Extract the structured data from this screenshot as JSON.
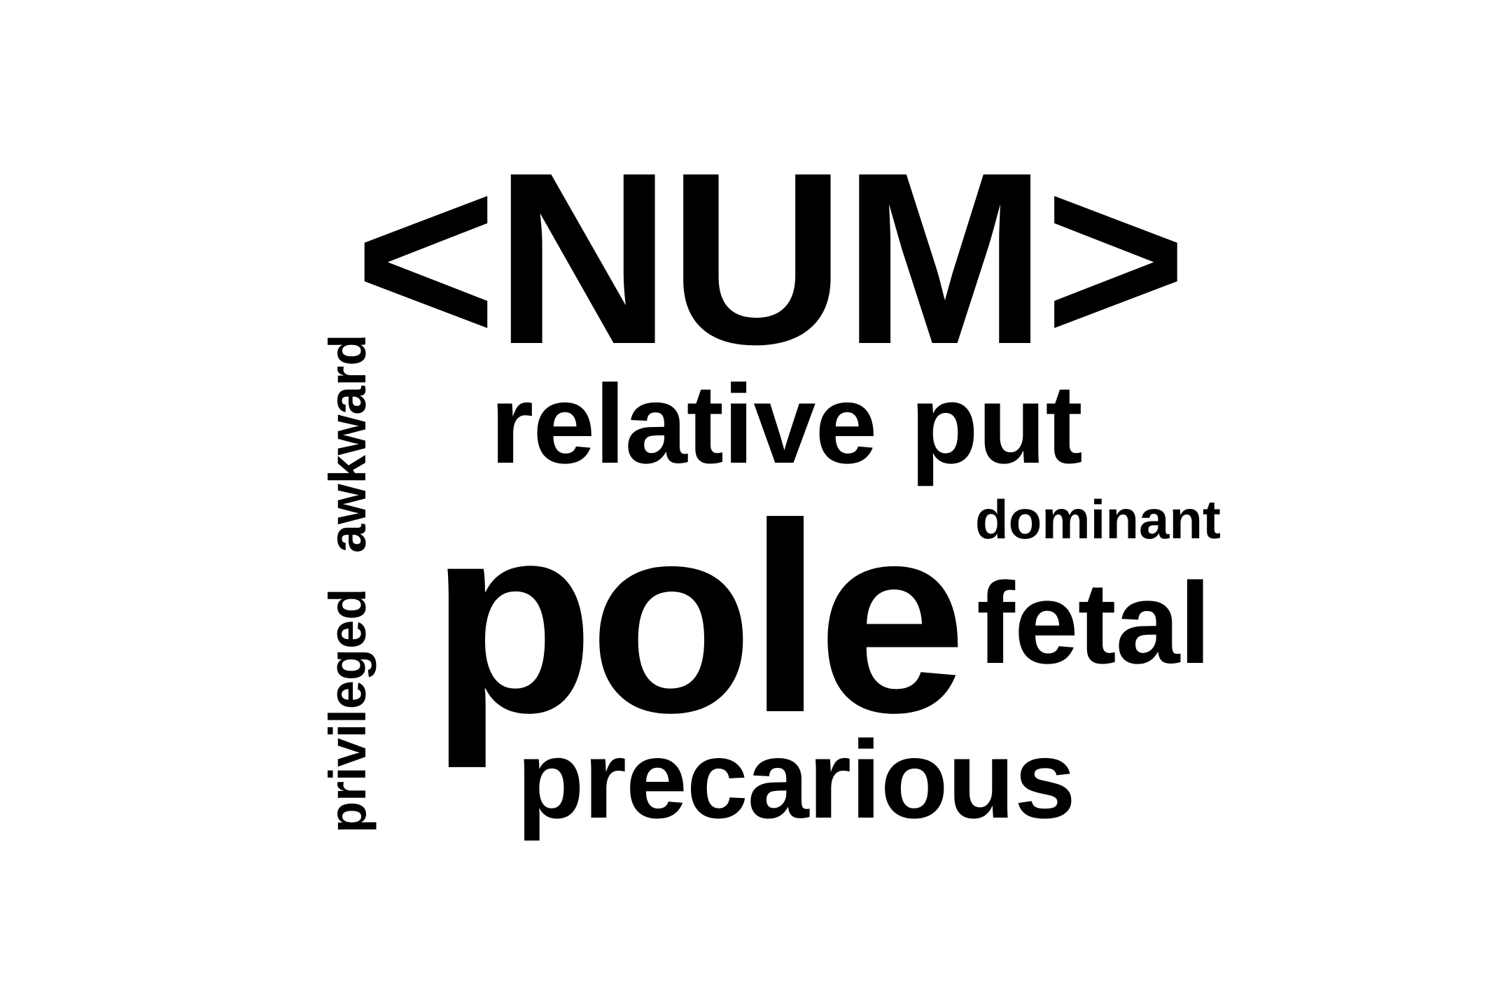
{
  "words": {
    "num": "<NUM>",
    "relative": "relative",
    "put": "put",
    "dominant": "dominant",
    "pole": "pole",
    "fetal": "fetal",
    "precarious": "precarious",
    "awkward": "awkward",
    "privileged": "privileged"
  },
  "colors": {
    "text": "#000000",
    "background": "#ffffff"
  }
}
